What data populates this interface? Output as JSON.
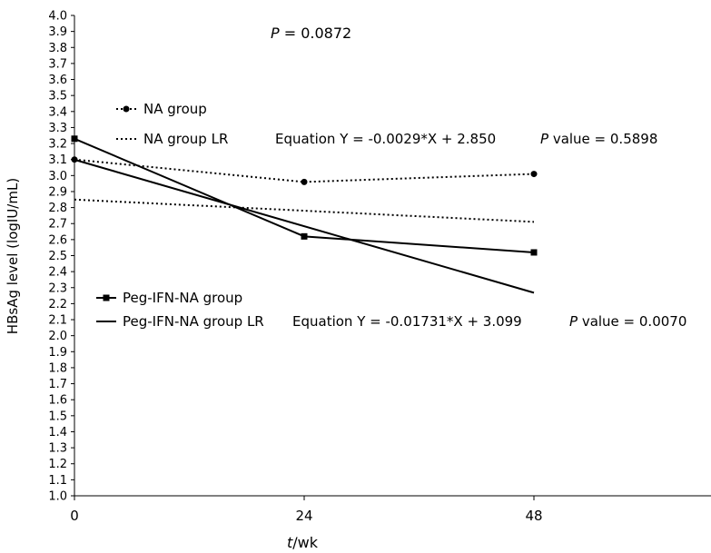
{
  "chart_data": {
    "type": "line",
    "x": [
      0,
      24,
      48
    ],
    "xticks": [
      "0",
      "24",
      "48"
    ],
    "xlim": [
      0,
      48
    ],
    "ylim": [
      1.0,
      4.0
    ],
    "yticks": [
      "1.0",
      "1.1",
      "1.2",
      "1.3",
      "1.4",
      "1.5",
      "1.6",
      "1.7",
      "1.8",
      "1.9",
      "2.0",
      "2.1",
      "2.2",
      "2.3",
      "2.4",
      "2.5",
      "2.6",
      "2.7",
      "2.8",
      "2.9",
      "3.0",
      "3.1",
      "3.2",
      "3.3",
      "3.4",
      "3.5",
      "3.6",
      "3.7",
      "3.8",
      "3.9",
      "4.0"
    ],
    "xlabel": {
      "italic": "t",
      "rest": "/wk"
    },
    "ylabel": "HBsAg level (logIU/mL)",
    "overall_p": {
      "italic": "P",
      "rest": " = 0.0872"
    },
    "grid": false,
    "series": [
      {
        "name": "NA group",
        "values": [
          3.1,
          2.96,
          3.01
        ],
        "style": "dotted",
        "marker": "circle"
      },
      {
        "name": "NA group LR",
        "style": "dotted",
        "slope": -0.0029,
        "intercept": 2.85,
        "equation": "Equation Y = -0.0029*X + 2.850",
        "p_label_italic": "P",
        "p_label_rest": " value = 0.5898"
      },
      {
        "name": "Peg-IFN-NA group",
        "values": [
          3.23,
          2.62,
          2.52
        ],
        "style": "solid",
        "marker": "square"
      },
      {
        "name": "Peg-IFN-NA group LR",
        "style": "solid",
        "slope": -0.01731,
        "intercept": 3.099,
        "equation": "Equation  Y = -0.01731*X + 3.099",
        "p_label_italic": "P",
        "p_label_rest": " value = 0.0070"
      }
    ],
    "colors": {
      "line": "#000000"
    }
  }
}
